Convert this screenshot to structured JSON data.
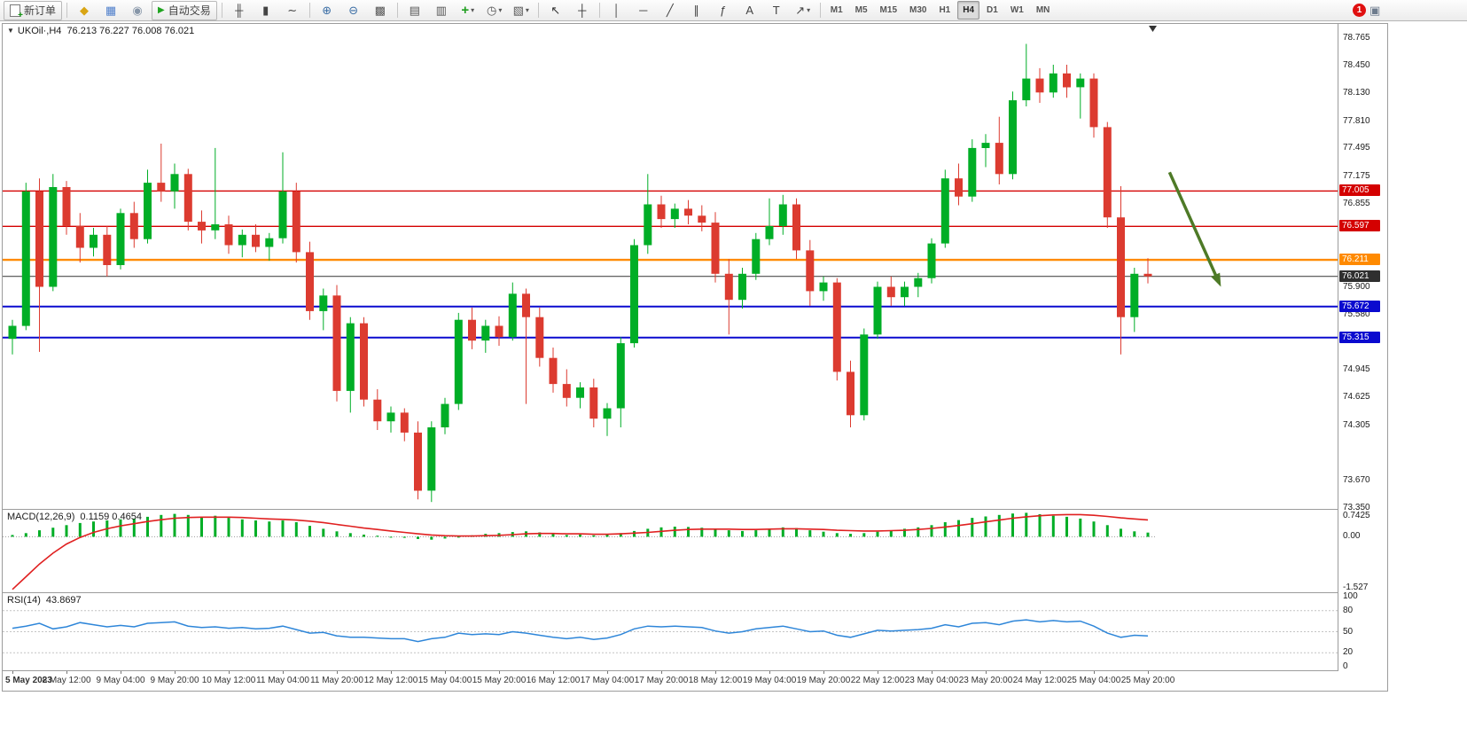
{
  "toolbar": {
    "caret": "▾",
    "icon_defs": {
      "doc-plus": "+",
      "play": "▶"
    },
    "buttons": [
      {
        "name": "new-order-button",
        "type": "labeled",
        "icon": "doc-plus",
        "label": "新订单"
      },
      {
        "type": "sep"
      },
      {
        "name": "market-watch-icon",
        "glyph": "◆",
        "color": "#d9a514"
      },
      {
        "name": "data-window-icon",
        "glyph": "▦",
        "color": "#4f7fcb"
      },
      {
        "name": "community-icon",
        "glyph": "◉",
        "color": "#8796a8"
      },
      {
        "name": "autotrade-button",
        "type": "labeled",
        "icon": "play",
        "label": "自动交易",
        "iconColor": "#1fa41f"
      },
      {
        "type": "sep"
      },
      {
        "name": "bar-chart-icon",
        "glyph": "╫",
        "color": "#444"
      },
      {
        "name": "candlestick-icon",
        "glyph": "▮",
        "color": "#444"
      },
      {
        "name": "line-chart-icon",
        "glyph": "∼",
        "color": "#444"
      },
      {
        "type": "sep"
      },
      {
        "name": "zoom-in-icon",
        "glyph": "⊕",
        "color": "#3b6ea5"
      },
      {
        "name": "zoom-out-icon",
        "glyph": "⊖",
        "color": "#3b6ea5"
      },
      {
        "name": "tile-windows-icon",
        "glyph": "▩",
        "color": "#555"
      },
      {
        "type": "sep"
      },
      {
        "name": "arrange-windows-icon",
        "glyph": "▤",
        "color": "#555"
      },
      {
        "name": "cascade-windows-icon",
        "glyph": "▥",
        "color": "#555"
      },
      {
        "name": "new-chart-button",
        "glyph": "+",
        "color": "#1e9e1e",
        "dropdown": true
      },
      {
        "name": "profiles-icon",
        "glyph": "◷",
        "color": "#555",
        "dropdown": true
      },
      {
        "name": "templates-icon",
        "glyph": "▧",
        "color": "#555",
        "dropdown": true
      },
      {
        "type": "sep"
      },
      {
        "name": "cursor-icon",
        "glyph": "↖",
        "color": "#333"
      },
      {
        "name": "crosshair-icon",
        "glyph": "┼",
        "color": "#333"
      },
      {
        "type": "sep"
      },
      {
        "name": "vertical-line-icon",
        "glyph": "│",
        "color": "#444"
      },
      {
        "name": "horizontal-line-icon",
        "glyph": "─",
        "color": "#444"
      },
      {
        "name": "trendline-icon",
        "glyph": "╱",
        "color": "#444"
      },
      {
        "name": "channel-icon",
        "glyph": "∥",
        "color": "#444"
      },
      {
        "name": "fibonacci-icon",
        "glyph": "ƒ",
        "color": "#444"
      },
      {
        "name": "text-tool-icon",
        "glyph": "A",
        "color": "#444"
      },
      {
        "name": "label-tool-icon",
        "glyph": "T",
        "color": "#444"
      },
      {
        "name": "shapes-tool-icon",
        "glyph": "↗",
        "color": "#444",
        "dropdown": true
      },
      {
        "type": "sep"
      }
    ],
    "timeframes": {
      "items": [
        "M1",
        "M5",
        "M15",
        "M30",
        "H1",
        "H4",
        "D1",
        "W1",
        "MN"
      ],
      "active": "H4"
    },
    "notification": {
      "count": "1"
    }
  },
  "chart_header": {
    "collapse_icon": "▼",
    "title": "UKOil·,H4",
    "ohlc": "76.213 76.227 76.008 76.021"
  },
  "chart_data": {
    "type": "candlestick",
    "symbol": "UKOil",
    "timeframe": "H4",
    "colors": {
      "up": "#00ae26",
      "down": "#dc3b30"
    },
    "price_axis": {
      "max": 78.93,
      "min": 73.34,
      "ticks": [
        "78.765",
        "78.450",
        "78.130",
        "77.810",
        "77.495",
        "77.175",
        "76.855",
        "75.900",
        "75.580",
        "74.945",
        "74.625",
        "74.305",
        "73.670",
        "73.350"
      ]
    },
    "hlines": [
      {
        "value": 77.005,
        "color": "#d40000",
        "width": 1.4
      },
      {
        "value": 76.597,
        "color": "#d40000",
        "width": 1.4
      },
      {
        "value": 76.211,
        "color": "#ff8a00",
        "width": 2.4
      },
      {
        "value": 76.021,
        "color": "#4d4d4d",
        "width": 1.2
      },
      {
        "value": 75.672,
        "color": "#0a0acf",
        "width": 2
      },
      {
        "value": 75.315,
        "color": "#0a0acf",
        "width": 2
      }
    ],
    "badges": [
      {
        "label": "77.005",
        "value": 77.005,
        "bg": "#d40000"
      },
      {
        "label": "76.597",
        "value": 76.597,
        "bg": "#d40000"
      },
      {
        "label": "76.211",
        "value": 76.211,
        "bg": "#ff8a00"
      },
      {
        "label": "76.021",
        "value": 76.021,
        "bg": "#2f2f2f"
      },
      {
        "label": "75.672",
        "value": 75.672,
        "bg": "#0a0acf"
      },
      {
        "label": "75.315",
        "value": 75.315,
        "bg": "#0a0acf"
      }
    ],
    "arrow": {
      "from_bar": 85.6,
      "from_price": 77.22,
      "to_bar": 89.4,
      "to_price": 75.9,
      "color": "#4e7a27"
    },
    "bars_per_label": 4,
    "x_labels": [
      "5 May 2023",
      "8 May 12:00",
      "9 May 04:00",
      "9 May 20:00",
      "10 May 12:00",
      "11 May 04:00",
      "11 May 20:00",
      "12 May 12:00",
      "15 May 04:00",
      "15 May 20:00",
      "16 May 12:00",
      "17 May 04:00",
      "17 May 20:00",
      "18 May 12:00",
      "19 May 04:00",
      "19 May 20:00",
      "22 May 12:00",
      "23 May 04:00",
      "23 May 20:00",
      "24 May 12:00",
      "25 May 04:00",
      "25 May 20:00"
    ],
    "candles": [
      [
        75.3,
        75.52,
        75.12,
        75.45
      ],
      [
        75.45,
        77.1,
        75.4,
        77.0
      ],
      [
        77.0,
        77.15,
        75.15,
        75.9
      ],
      [
        75.9,
        77.2,
        75.85,
        77.05
      ],
      [
        77.05,
        77.12,
        76.5,
        76.6
      ],
      [
        76.6,
        76.75,
        76.18,
        76.35
      ],
      [
        76.35,
        76.58,
        76.25,
        76.5
      ],
      [
        76.5,
        76.6,
        76.02,
        76.15
      ],
      [
        76.15,
        76.8,
        76.1,
        76.75
      ],
      [
        76.75,
        76.88,
        76.35,
        76.45
      ],
      [
        76.45,
        77.25,
        76.4,
        77.1
      ],
      [
        77.1,
        77.55,
        76.88,
        77.0
      ],
      [
        77.0,
        77.32,
        76.8,
        77.2
      ],
      [
        77.2,
        77.26,
        76.55,
        76.65
      ],
      [
        76.65,
        76.78,
        76.4,
        76.55
      ],
      [
        76.55,
        77.5,
        76.45,
        76.62
      ],
      [
        76.62,
        76.72,
        76.28,
        76.38
      ],
      [
        76.38,
        76.56,
        76.24,
        76.5
      ],
      [
        76.5,
        76.62,
        76.3,
        76.36
      ],
      [
        76.36,
        76.52,
        76.2,
        76.46
      ],
      [
        76.46,
        77.45,
        76.4,
        77.0
      ],
      [
        77.0,
        77.1,
        76.18,
        76.3
      ],
      [
        76.3,
        76.42,
        75.52,
        75.62
      ],
      [
        75.62,
        75.88,
        75.4,
        75.8
      ],
      [
        75.8,
        75.92,
        74.58,
        74.7
      ],
      [
        74.7,
        75.55,
        74.45,
        75.48
      ],
      [
        75.48,
        75.55,
        74.52,
        74.6
      ],
      [
        74.6,
        74.72,
        74.25,
        74.35
      ],
      [
        74.35,
        74.52,
        74.22,
        74.45
      ],
      [
        74.45,
        74.5,
        74.12,
        74.22
      ],
      [
        74.22,
        74.35,
        73.45,
        73.55
      ],
      [
        73.55,
        74.35,
        73.42,
        74.28
      ],
      [
        74.28,
        74.62,
        74.2,
        74.55
      ],
      [
        74.55,
        75.6,
        74.48,
        75.52
      ],
      [
        75.52,
        75.66,
        75.18,
        75.28
      ],
      [
        75.28,
        75.52,
        75.14,
        75.45
      ],
      [
        75.45,
        75.56,
        75.22,
        75.32
      ],
      [
        75.32,
        75.95,
        75.28,
        75.82
      ],
      [
        75.82,
        75.88,
        74.55,
        75.55
      ],
      [
        75.55,
        75.66,
        74.98,
        75.08
      ],
      [
        75.08,
        75.2,
        74.68,
        74.78
      ],
      [
        74.78,
        74.95,
        74.52,
        74.62
      ],
      [
        74.62,
        74.8,
        74.5,
        74.74
      ],
      [
        74.74,
        74.84,
        74.28,
        74.38
      ],
      [
        74.38,
        74.56,
        74.18,
        74.5
      ],
      [
        74.5,
        75.32,
        74.28,
        75.25
      ],
      [
        75.25,
        76.45,
        75.2,
        76.38
      ],
      [
        76.38,
        77.2,
        76.28,
        76.85
      ],
      [
        76.85,
        76.95,
        76.58,
        76.68
      ],
      [
        76.68,
        76.86,
        76.58,
        76.8
      ],
      [
        76.8,
        76.9,
        76.62,
        76.72
      ],
      [
        76.72,
        76.84,
        76.54,
        76.64
      ],
      [
        76.64,
        76.76,
        75.95,
        76.05
      ],
      [
        76.05,
        76.22,
        75.35,
        75.75
      ],
      [
        75.75,
        76.12,
        75.65,
        76.05
      ],
      [
        76.05,
        76.52,
        75.98,
        76.45
      ],
      [
        76.45,
        76.92,
        76.38,
        76.6
      ],
      [
        76.6,
        76.96,
        76.5,
        76.85
      ],
      [
        76.85,
        76.92,
        76.22,
        76.32
      ],
      [
        76.32,
        76.44,
        75.68,
        75.85
      ],
      [
        75.85,
        76.02,
        75.74,
        75.95
      ],
      [
        75.95,
        76.0,
        74.82,
        74.92
      ],
      [
        74.92,
        75.05,
        74.28,
        74.42
      ],
      [
        74.42,
        75.42,
        74.36,
        75.35
      ],
      [
        75.35,
        75.96,
        75.3,
        75.9
      ],
      [
        75.9,
        76.02,
        75.68,
        75.78
      ],
      [
        75.78,
        75.96,
        75.68,
        75.9
      ],
      [
        75.9,
        76.06,
        75.78,
        76.0
      ],
      [
        76.0,
        76.46,
        75.94,
        76.4
      ],
      [
        76.4,
        77.25,
        76.35,
        77.15
      ],
      [
        77.15,
        77.32,
        76.84,
        76.94
      ],
      [
        76.94,
        77.6,
        76.88,
        77.5
      ],
      [
        77.5,
        77.66,
        77.28,
        77.56
      ],
      [
        77.56,
        77.86,
        77.08,
        77.2
      ],
      [
        77.2,
        78.15,
        77.14,
        78.05
      ],
      [
        78.05,
        78.7,
        77.98,
        78.3
      ],
      [
        78.3,
        78.42,
        78.02,
        78.14
      ],
      [
        78.14,
        78.46,
        78.08,
        78.36
      ],
      [
        78.36,
        78.46,
        78.08,
        78.2
      ],
      [
        78.2,
        78.36,
        77.84,
        78.3
      ],
      [
        78.3,
        78.36,
        77.62,
        77.74
      ],
      [
        77.74,
        77.8,
        76.58,
        76.7
      ],
      [
        76.7,
        77.06,
        75.12,
        75.55
      ],
      [
        75.55,
        76.12,
        75.38,
        76.05
      ],
      [
        76.05,
        76.23,
        75.94,
        76.02
      ]
    ],
    "macd": {
      "label": "MACD(12,26,9)",
      "values_label": "0.1159 0.4654",
      "colors": {
        "histogram": "#00ae26",
        "signal": "#e02020"
      },
      "scale": {
        "max": 0.7425,
        "min": -1.527,
        "ticks": [
          "0.7425",
          "0.00",
          "-1.527"
        ],
        "tick_values": [
          0.7425,
          0,
          -1.527
        ]
      },
      "main": [
        0.05,
        0.1,
        0.18,
        0.25,
        0.32,
        0.38,
        0.42,
        0.45,
        0.48,
        0.5,
        0.55,
        0.6,
        0.63,
        0.6,
        0.55,
        0.58,
        0.52,
        0.48,
        0.45,
        0.42,
        0.45,
        0.4,
        0.3,
        0.22,
        0.15,
        0.1,
        0.06,
        0.03,
        0.0,
        -0.03,
        -0.06,
        -0.08,
        -0.05,
        0.0,
        0.04,
        0.08,
        0.1,
        0.13,
        0.15,
        0.12,
        0.08,
        0.05,
        0.06,
        0.04,
        0.06,
        0.1,
        0.16,
        0.22,
        0.26,
        0.28,
        0.27,
        0.25,
        0.22,
        0.18,
        0.16,
        0.18,
        0.22,
        0.26,
        0.24,
        0.18,
        0.14,
        0.1,
        0.08,
        0.1,
        0.14,
        0.18,
        0.22,
        0.26,
        0.32,
        0.4,
        0.46,
        0.52,
        0.56,
        0.6,
        0.64,
        0.66,
        0.62,
        0.58,
        0.55,
        0.5,
        0.42,
        0.32,
        0.22,
        0.15,
        0.116
      ],
      "signal": [
        -1.45,
        -1.1,
        -0.75,
        -0.45,
        -0.2,
        -0.02,
        0.12,
        0.22,
        0.3,
        0.36,
        0.42,
        0.47,
        0.51,
        0.53,
        0.54,
        0.54,
        0.54,
        0.53,
        0.51,
        0.49,
        0.48,
        0.46,
        0.43,
        0.39,
        0.34,
        0.29,
        0.24,
        0.2,
        0.16,
        0.12,
        0.08,
        0.05,
        0.03,
        0.02,
        0.02,
        0.03,
        0.04,
        0.06,
        0.08,
        0.09,
        0.09,
        0.08,
        0.08,
        0.07,
        0.07,
        0.08,
        0.1,
        0.12,
        0.15,
        0.18,
        0.2,
        0.21,
        0.21,
        0.21,
        0.2,
        0.2,
        0.21,
        0.22,
        0.22,
        0.21,
        0.2,
        0.18,
        0.17,
        0.16,
        0.16,
        0.17,
        0.18,
        0.2,
        0.23,
        0.27,
        0.31,
        0.36,
        0.41,
        0.46,
        0.51,
        0.55,
        0.58,
        0.6,
        0.61,
        0.61,
        0.59,
        0.56,
        0.52,
        0.49,
        0.465
      ]
    },
    "rsi": {
      "label": "RSI(14)",
      "value_label": "43.8697",
      "color": "#2e86d9",
      "scale": {
        "max": 100,
        "min": 0,
        "ticks": [
          "100",
          "80",
          "50",
          "20",
          "0"
        ],
        "tick_values": [
          100,
          80,
          50,
          20,
          0
        ],
        "levels": [
          80,
          50,
          20
        ]
      },
      "values": [
        55,
        58,
        62,
        54,
        57,
        63,
        60,
        57,
        59,
        57,
        62,
        63,
        64,
        58,
        56,
        57,
        55,
        56,
        54,
        55,
        58,
        53,
        48,
        49,
        44,
        42,
        42,
        41,
        40,
        40,
        36,
        40,
        42,
        48,
        46,
        47,
        46,
        50,
        48,
        45,
        42,
        40,
        42,
        39,
        41,
        46,
        54,
        58,
        57,
        58,
        57,
        56,
        51,
        48,
        50,
        54,
        56,
        58,
        54,
        50,
        51,
        45,
        42,
        47,
        52,
        51,
        52,
        53,
        55,
        60,
        57,
        62,
        63,
        60,
        65,
        67,
        64,
        66,
        64,
        65,
        58,
        48,
        42,
        45,
        43.87
      ]
    }
  }
}
